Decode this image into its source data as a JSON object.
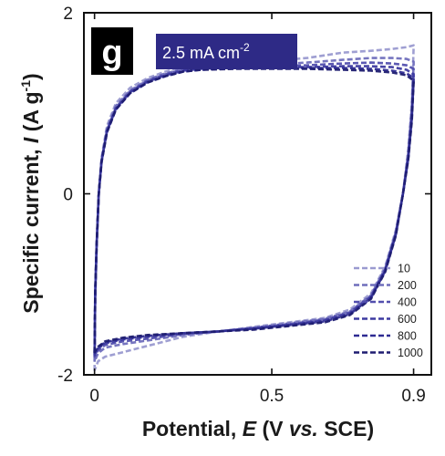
{
  "chart_data": {
    "type": "line",
    "panel_letter": "g",
    "condition_label": "2.5 mA cm",
    "condition_superscript": "-2",
    "xlabel": {
      "prefix": "Potential, ",
      "symbol": "E",
      "unit_open": " (V ",
      "unit_vs": "vs.",
      "unit_close": " SCE)"
    },
    "ylabel": {
      "prefix": "Specific current, ",
      "symbol": "I",
      "unit_open": " (A g",
      "unit_sup": "-1",
      "unit_close": ")"
    },
    "xlim": [
      -0.03,
      0.95
    ],
    "ylim": [
      -2,
      2
    ],
    "xticks": [
      {
        "value": 0,
        "label": "0"
      },
      {
        "value": 0.5,
        "label": "0.5"
      },
      {
        "value": 0.9,
        "label": "0.9"
      }
    ],
    "yticks": [
      {
        "value": 2,
        "label": "2"
      },
      {
        "value": 0,
        "label": "0"
      },
      {
        "value": -2,
        "label": "-2"
      }
    ],
    "legend_position": "bottom-right",
    "colors": {
      "badge_letter_bg": "#000000",
      "badge_condition_bg": "#2e2a86"
    },
    "series": [
      {
        "name": "10",
        "color": "#9a9ad0",
        "points": [
          [
            0,
            -1.95
          ],
          [
            0.002,
            -1.2
          ],
          [
            0.006,
            -0.6
          ],
          [
            0.012,
            0.0
          ],
          [
            0.02,
            0.4
          ],
          [
            0.035,
            0.75
          ],
          [
            0.06,
            1.0
          ],
          [
            0.1,
            1.17
          ],
          [
            0.15,
            1.28
          ],
          [
            0.2,
            1.35
          ],
          [
            0.25,
            1.4
          ],
          [
            0.3,
            1.42
          ],
          [
            0.4,
            1.44
          ],
          [
            0.5,
            1.47
          ],
          [
            0.6,
            1.5
          ],
          [
            0.7,
            1.56
          ],
          [
            0.78,
            1.58
          ],
          [
            0.84,
            1.6
          ],
          [
            0.88,
            1.62
          ],
          [
            0.9,
            1.64
          ],
          [
            0.9,
            1.62
          ],
          [
            0.895,
            1.0
          ],
          [
            0.885,
            0.5
          ],
          [
            0.87,
            0.0
          ],
          [
            0.85,
            -0.4
          ],
          [
            0.82,
            -0.8
          ],
          [
            0.78,
            -1.1
          ],
          [
            0.72,
            -1.28
          ],
          [
            0.65,
            -1.37
          ],
          [
            0.55,
            -1.42
          ],
          [
            0.45,
            -1.47
          ],
          [
            0.35,
            -1.52
          ],
          [
            0.25,
            -1.58
          ],
          [
            0.15,
            -1.68
          ],
          [
            0.08,
            -1.75
          ],
          [
            0.03,
            -1.8
          ],
          [
            0.01,
            -1.85
          ],
          [
            0,
            -1.95
          ]
        ]
      },
      {
        "name": "200",
        "color": "#6f6ebc",
        "points": [
          [
            0,
            -1.85
          ],
          [
            0.002,
            -1.15
          ],
          [
            0.006,
            -0.58
          ],
          [
            0.012,
            0.0
          ],
          [
            0.02,
            0.38
          ],
          [
            0.035,
            0.72
          ],
          [
            0.06,
            0.97
          ],
          [
            0.1,
            1.14
          ],
          [
            0.15,
            1.26
          ],
          [
            0.2,
            1.33
          ],
          [
            0.25,
            1.38
          ],
          [
            0.3,
            1.4
          ],
          [
            0.4,
            1.42
          ],
          [
            0.5,
            1.43
          ],
          [
            0.6,
            1.45
          ],
          [
            0.7,
            1.48
          ],
          [
            0.78,
            1.5
          ],
          [
            0.84,
            1.5
          ],
          [
            0.88,
            1.49
          ],
          [
            0.9,
            1.46
          ],
          [
            0.9,
            1.44
          ],
          [
            0.895,
            0.95
          ],
          [
            0.885,
            0.45
          ],
          [
            0.87,
            0.0
          ],
          [
            0.85,
            -0.42
          ],
          [
            0.82,
            -0.82
          ],
          [
            0.78,
            -1.12
          ],
          [
            0.72,
            -1.3
          ],
          [
            0.65,
            -1.38
          ],
          [
            0.55,
            -1.43
          ],
          [
            0.45,
            -1.48
          ],
          [
            0.35,
            -1.52
          ],
          [
            0.25,
            -1.56
          ],
          [
            0.15,
            -1.62
          ],
          [
            0.08,
            -1.66
          ],
          [
            0.03,
            -1.7
          ],
          [
            0.01,
            -1.76
          ],
          [
            0,
            -1.85
          ]
        ]
      },
      {
        "name": "400",
        "color": "#524fae",
        "points": [
          [
            0,
            -1.8
          ],
          [
            0.002,
            -1.12
          ],
          [
            0.006,
            -0.56
          ],
          [
            0.012,
            0.0
          ],
          [
            0.02,
            0.37
          ],
          [
            0.035,
            0.7
          ],
          [
            0.06,
            0.95
          ],
          [
            0.1,
            1.13
          ],
          [
            0.15,
            1.25
          ],
          [
            0.2,
            1.32
          ],
          [
            0.25,
            1.37
          ],
          [
            0.3,
            1.39
          ],
          [
            0.4,
            1.41
          ],
          [
            0.5,
            1.41
          ],
          [
            0.6,
            1.42
          ],
          [
            0.7,
            1.44
          ],
          [
            0.78,
            1.45
          ],
          [
            0.84,
            1.44
          ],
          [
            0.88,
            1.42
          ],
          [
            0.9,
            1.38
          ],
          [
            0.9,
            1.36
          ],
          [
            0.895,
            0.9
          ],
          [
            0.885,
            0.42
          ],
          [
            0.87,
            0.0
          ],
          [
            0.85,
            -0.43
          ],
          [
            0.82,
            -0.83
          ],
          [
            0.78,
            -1.13
          ],
          [
            0.72,
            -1.31
          ],
          [
            0.65,
            -1.39
          ],
          [
            0.55,
            -1.44
          ],
          [
            0.45,
            -1.48
          ],
          [
            0.35,
            -1.52
          ],
          [
            0.25,
            -1.55
          ],
          [
            0.15,
            -1.6
          ],
          [
            0.08,
            -1.63
          ],
          [
            0.03,
            -1.67
          ],
          [
            0.01,
            -1.73
          ],
          [
            0,
            -1.8
          ]
        ]
      },
      {
        "name": "600",
        "color": "#3d3aa0",
        "points": [
          [
            0,
            -1.78
          ],
          [
            0.002,
            -1.1
          ],
          [
            0.006,
            -0.55
          ],
          [
            0.012,
            0.0
          ],
          [
            0.02,
            0.36
          ],
          [
            0.035,
            0.69
          ],
          [
            0.06,
            0.94
          ],
          [
            0.1,
            1.12
          ],
          [
            0.15,
            1.24
          ],
          [
            0.2,
            1.31
          ],
          [
            0.25,
            1.36
          ],
          [
            0.3,
            1.38
          ],
          [
            0.4,
            1.4
          ],
          [
            0.5,
            1.4
          ],
          [
            0.6,
            1.4
          ],
          [
            0.7,
            1.41
          ],
          [
            0.78,
            1.41
          ],
          [
            0.84,
            1.4
          ],
          [
            0.88,
            1.37
          ],
          [
            0.9,
            1.32
          ],
          [
            0.9,
            1.3
          ],
          [
            0.895,
            0.86
          ],
          [
            0.885,
            0.4
          ],
          [
            0.87,
            0.0
          ],
          [
            0.85,
            -0.44
          ],
          [
            0.82,
            -0.84
          ],
          [
            0.78,
            -1.14
          ],
          [
            0.72,
            -1.32
          ],
          [
            0.65,
            -1.4
          ],
          [
            0.55,
            -1.45
          ],
          [
            0.45,
            -1.49
          ],
          [
            0.35,
            -1.52
          ],
          [
            0.25,
            -1.54
          ],
          [
            0.15,
            -1.58
          ],
          [
            0.08,
            -1.61
          ],
          [
            0.03,
            -1.65
          ],
          [
            0.01,
            -1.71
          ],
          [
            0,
            -1.78
          ]
        ]
      },
      {
        "name": "800",
        "color": "#2e2b92",
        "points": [
          [
            0,
            -1.76
          ],
          [
            0.002,
            -1.09
          ],
          [
            0.006,
            -0.55
          ],
          [
            0.012,
            0.0
          ],
          [
            0.02,
            0.36
          ],
          [
            0.035,
            0.68
          ],
          [
            0.06,
            0.93
          ],
          [
            0.1,
            1.11
          ],
          [
            0.15,
            1.23
          ],
          [
            0.2,
            1.3
          ],
          [
            0.25,
            1.35
          ],
          [
            0.3,
            1.37
          ],
          [
            0.4,
            1.39
          ],
          [
            0.5,
            1.39
          ],
          [
            0.6,
            1.39
          ],
          [
            0.7,
            1.39
          ],
          [
            0.78,
            1.38
          ],
          [
            0.84,
            1.36
          ],
          [
            0.88,
            1.33
          ],
          [
            0.9,
            1.28
          ],
          [
            0.9,
            1.26
          ],
          [
            0.895,
            0.83
          ],
          [
            0.885,
            0.39
          ],
          [
            0.87,
            0.0
          ],
          [
            0.85,
            -0.45
          ],
          [
            0.82,
            -0.85
          ],
          [
            0.78,
            -1.15
          ],
          [
            0.72,
            -1.33
          ],
          [
            0.65,
            -1.41
          ],
          [
            0.55,
            -1.45
          ],
          [
            0.45,
            -1.49
          ],
          [
            0.35,
            -1.52
          ],
          [
            0.25,
            -1.54
          ],
          [
            0.15,
            -1.57
          ],
          [
            0.08,
            -1.6
          ],
          [
            0.03,
            -1.64
          ],
          [
            0.01,
            -1.7
          ],
          [
            0,
            -1.76
          ]
        ]
      },
      {
        "name": "1000",
        "color": "#1e1c70",
        "points": [
          [
            0,
            -1.75
          ],
          [
            0.002,
            -1.08
          ],
          [
            0.006,
            -0.54
          ],
          [
            0.012,
            0.0
          ],
          [
            0.02,
            0.35
          ],
          [
            0.035,
            0.68
          ],
          [
            0.06,
            0.93
          ],
          [
            0.1,
            1.11
          ],
          [
            0.15,
            1.23
          ],
          [
            0.2,
            1.3
          ],
          [
            0.25,
            1.35
          ],
          [
            0.3,
            1.37
          ],
          [
            0.4,
            1.38
          ],
          [
            0.5,
            1.38
          ],
          [
            0.6,
            1.38
          ],
          [
            0.7,
            1.37
          ],
          [
            0.78,
            1.36
          ],
          [
            0.84,
            1.34
          ],
          [
            0.88,
            1.31
          ],
          [
            0.9,
            1.25
          ],
          [
            0.9,
            1.23
          ],
          [
            0.895,
            0.8
          ],
          [
            0.885,
            0.38
          ],
          [
            0.87,
            0.0
          ],
          [
            0.85,
            -0.46
          ],
          [
            0.82,
            -0.86
          ],
          [
            0.78,
            -1.16
          ],
          [
            0.72,
            -1.34
          ],
          [
            0.65,
            -1.42
          ],
          [
            0.55,
            -1.46
          ],
          [
            0.45,
            -1.5
          ],
          [
            0.35,
            -1.52
          ],
          [
            0.25,
            -1.54
          ],
          [
            0.15,
            -1.56
          ],
          [
            0.08,
            -1.59
          ],
          [
            0.03,
            -1.63
          ],
          [
            0.01,
            -1.69
          ],
          [
            0,
            -1.75
          ]
        ]
      }
    ]
  }
}
